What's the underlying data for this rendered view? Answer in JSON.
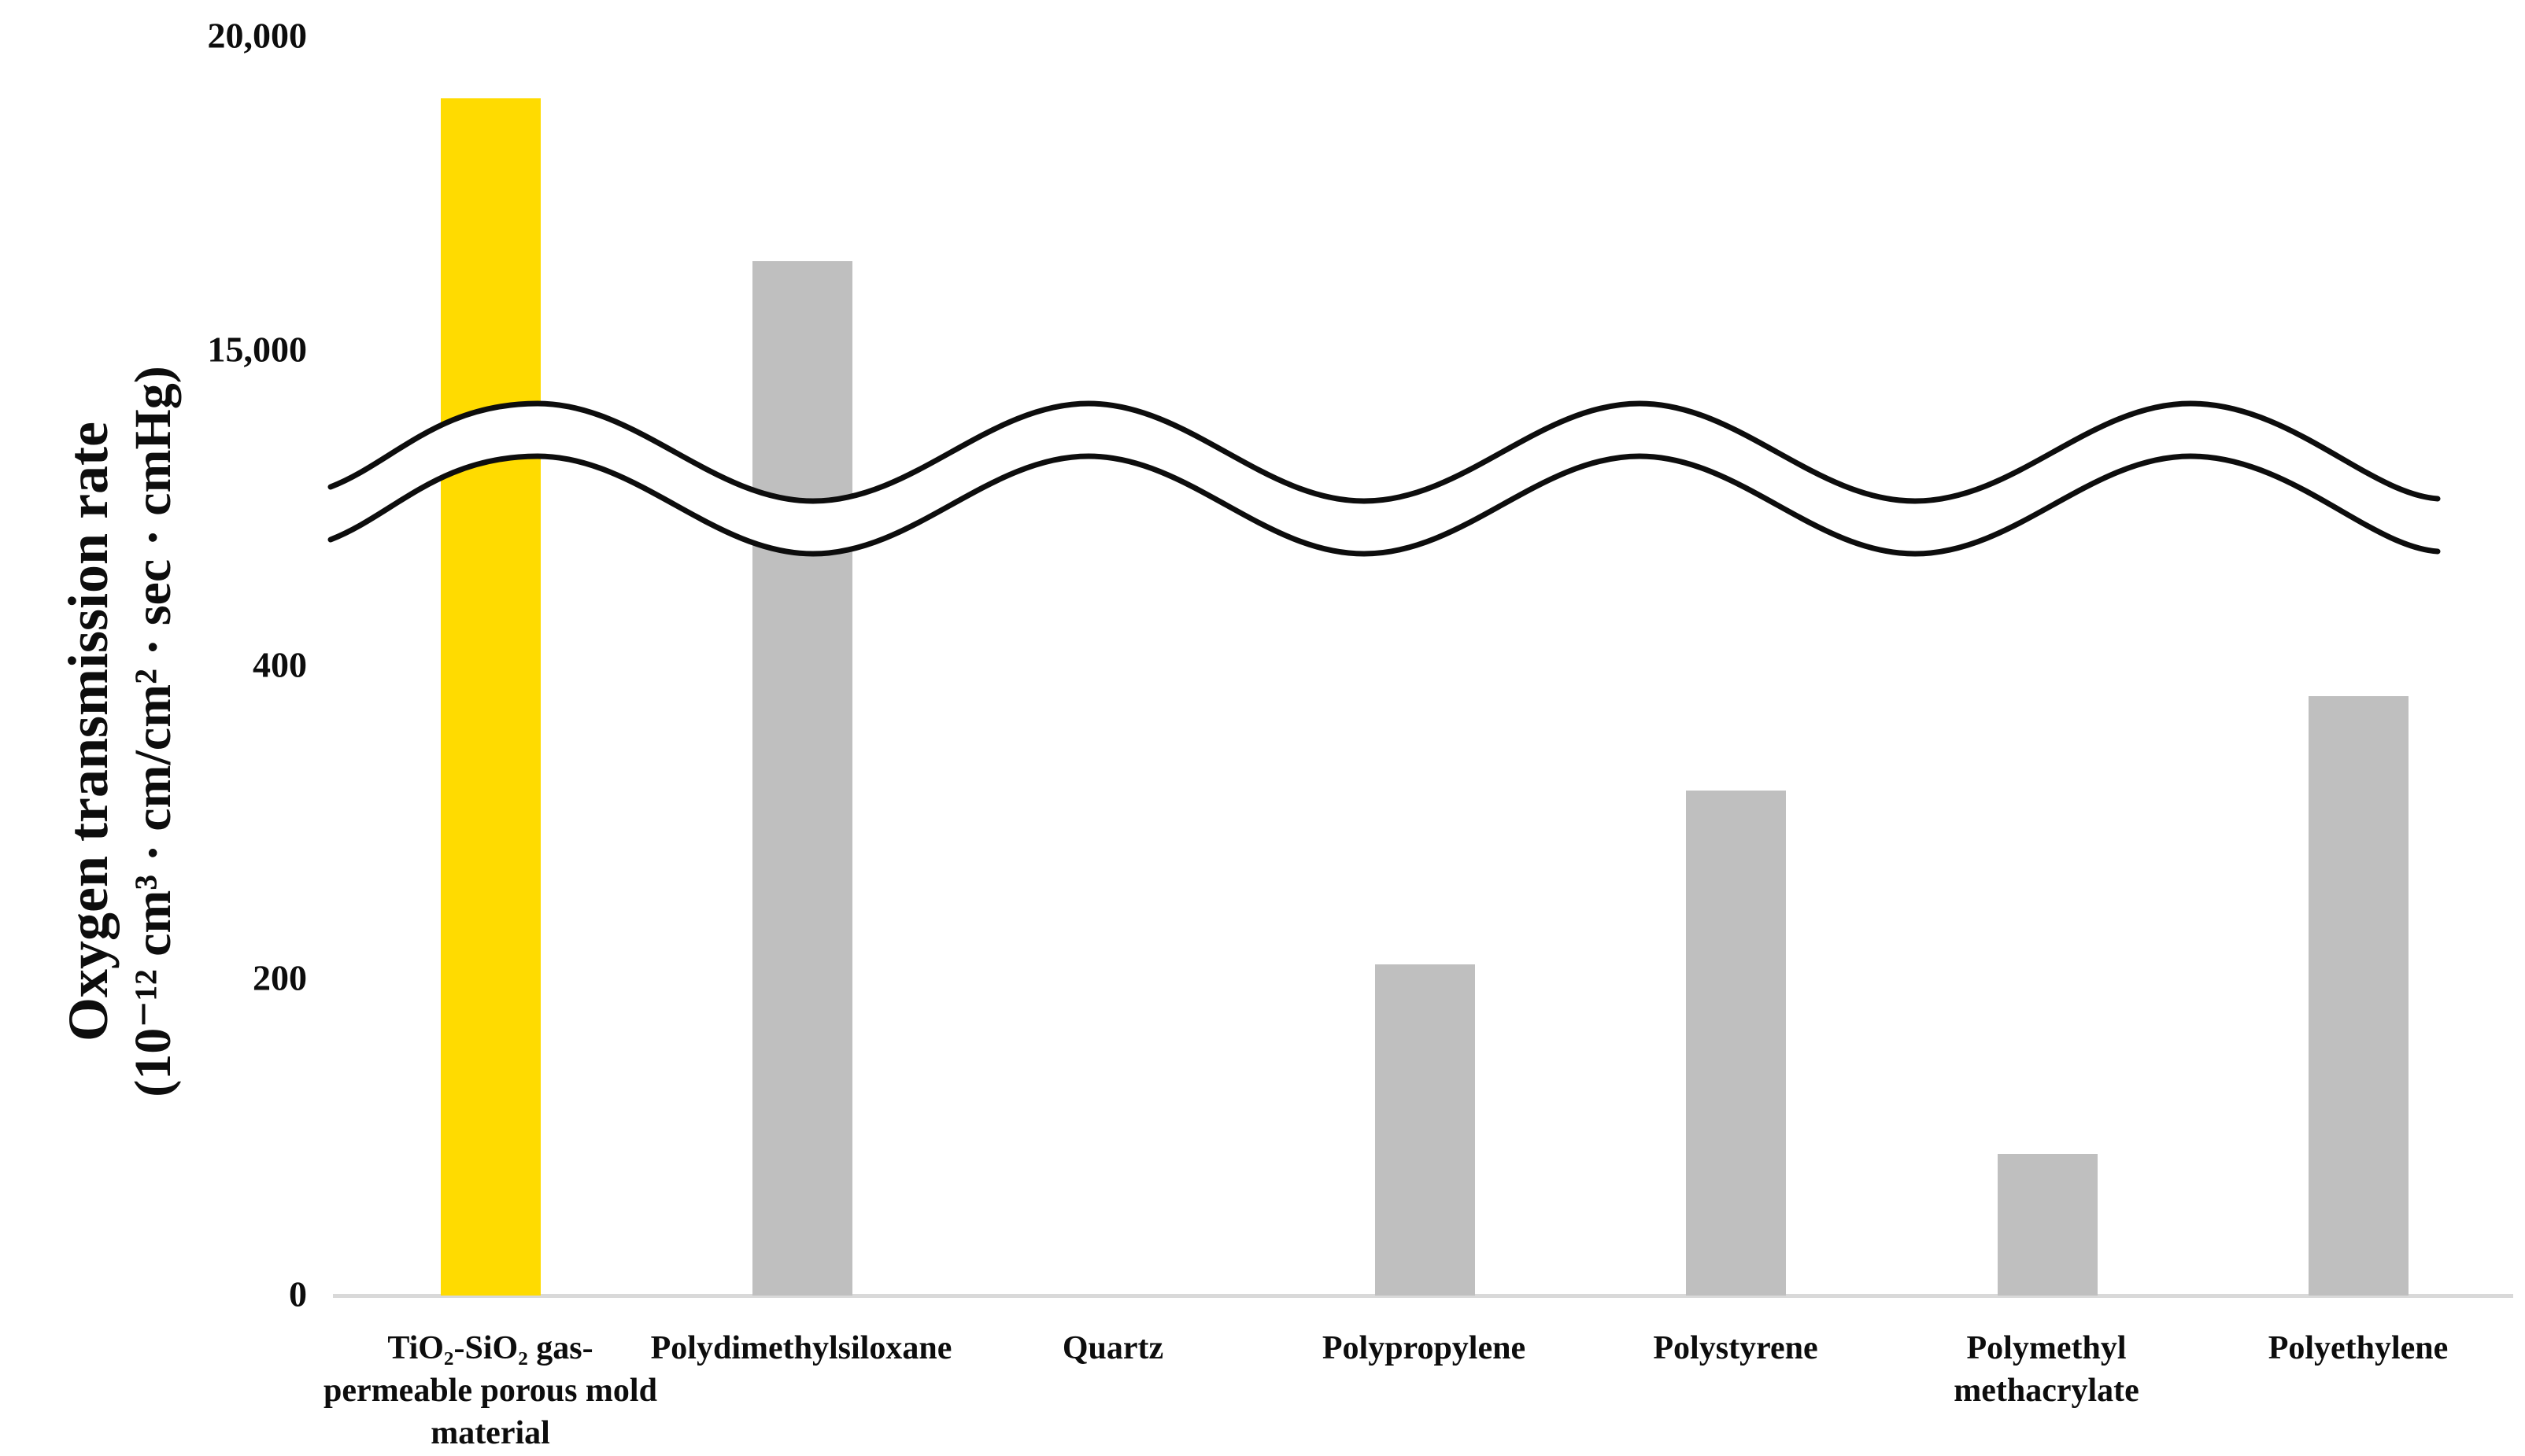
{
  "chart_data": {
    "type": "bar",
    "title": "",
    "ylabel_line1": "Oxygen transmission rate",
    "ylabel_line2": "(10⁻¹² cm³ · cm/cm² · sec · cmHg)",
    "categories": [
      "TiO₂-SiO₂ gas-permeable porous mold material",
      "Polydimethylsiloxane",
      "Quartz",
      "Polypropylene",
      "Polystyrene",
      "Polymethyl methacrylate",
      "Polyethylene"
    ],
    "values": [
      19000,
      16400,
      0,
      210,
      320,
      90,
      380
    ],
    "highlight_index": 0,
    "ylim": [
      0,
      20000
    ],
    "y_ticks": [
      {
        "label": "0",
        "value": 0
      },
      {
        "label": "200",
        "value": 200
      },
      {
        "label": "400",
        "value": 400
      },
      {
        "label": "15,000",
        "value": 15000
      },
      {
        "label": "20,000",
        "value": 20000
      }
    ],
    "axis_break": {
      "between": [
        400,
        15000
      ],
      "style": "double-wave"
    },
    "grid": false,
    "legend": false,
    "colors": {
      "highlight": "#FFDB00",
      "bar": "#BFBFBF",
      "axis_line": "#D9D9D9",
      "wave_line": "#0d0d0d",
      "background": "#FFFFFF"
    }
  }
}
